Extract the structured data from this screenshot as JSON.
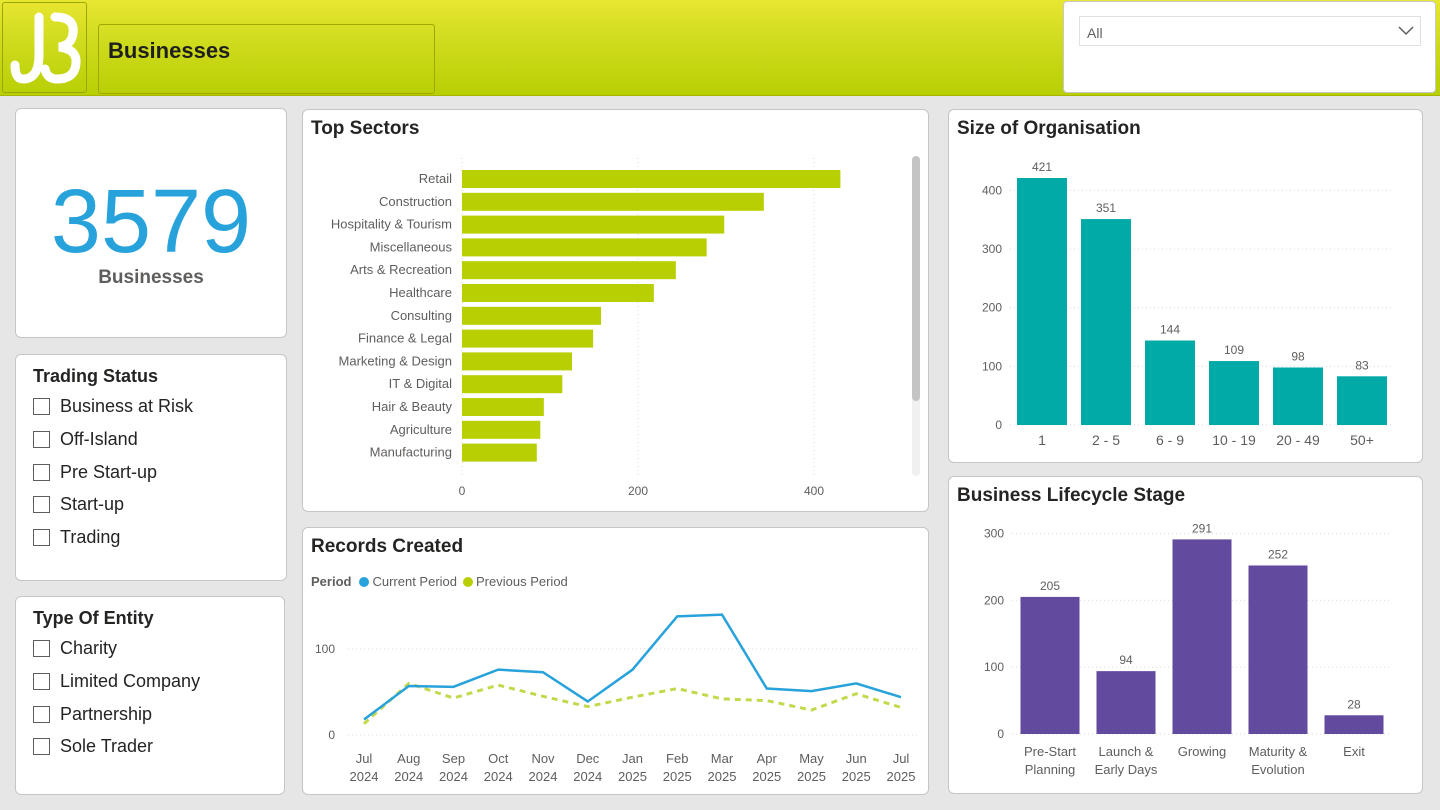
{
  "header": {
    "title": "Businesses",
    "logo_icon": "jb-logo-icon",
    "filter": {
      "selected": "All"
    }
  },
  "kpi": {
    "value": "3579",
    "label": "Businesses"
  },
  "trading_status": {
    "title": "Trading Status",
    "options": [
      "Business at Risk",
      "Off-Island",
      "Pre Start-up",
      "Start-up",
      "Trading"
    ]
  },
  "entity_type": {
    "title": "Type Of Entity",
    "options": [
      "Charity",
      "Limited Company",
      "Partnership",
      "Sole Trader"
    ]
  },
  "colors": {
    "lime": "#b8cf04",
    "teal": "#01a9a7",
    "purple": "#624a9e",
    "blue": "#27a2db",
    "dash": "#c3d84c"
  },
  "chart_data": [
    {
      "id": "top_sectors",
      "type": "bar",
      "orientation": "horizontal",
      "title": "Top Sectors",
      "categories": [
        "Retail",
        "Construction",
        "Hospitality & Tourism",
        "Miscellaneous",
        "Arts & Recreation",
        "Healthcare",
        "Consulting",
        "Finance & Legal",
        "Marketing & Design",
        "IT & Digital",
        "Hair & Beauty",
        "Agriculture",
        "Manufacturing"
      ],
      "values": [
        430,
        343,
        298,
        278,
        243,
        218,
        158,
        149,
        125,
        114,
        93,
        89,
        85
      ],
      "xlim": [
        0,
        500
      ],
      "xticks": [
        0,
        200,
        400
      ],
      "grid": true
    },
    {
      "id": "size_of_organisation",
      "type": "bar",
      "title": "Size of Organisation",
      "categories": [
        "1",
        "2 - 5",
        "6 - 9",
        "10 - 19",
        "20 - 49",
        "50+"
      ],
      "values": [
        421,
        351,
        144,
        109,
        98,
        83
      ],
      "ylim": [
        0,
        450
      ],
      "yticks": [
        0,
        100,
        200,
        300,
        400
      ],
      "grid": true
    },
    {
      "id": "records_created",
      "type": "line",
      "title": "Records Created",
      "legend_title": "Period",
      "categories": [
        [
          "Jul",
          "2024"
        ],
        [
          "Aug",
          "2024"
        ],
        [
          "Sep",
          "2024"
        ],
        [
          "Oct",
          "2024"
        ],
        [
          "Nov",
          "2024"
        ],
        [
          "Dec",
          "2024"
        ],
        [
          "Jan",
          "2025"
        ],
        [
          "Feb",
          "2025"
        ],
        [
          "Mar",
          "2025"
        ],
        [
          "Apr",
          "2025"
        ],
        [
          "May",
          "2025"
        ],
        [
          "Jun",
          "2025"
        ],
        [
          "Jul",
          "2025"
        ]
      ],
      "series": [
        {
          "name": "Current Period",
          "values": [
            18,
            57,
            56,
            76,
            73,
            39,
            76,
            138,
            140,
            54,
            51,
            60,
            44
          ]
        },
        {
          "name": "Previous Period",
          "values": [
            13,
            60,
            43,
            58,
            45,
            33,
            44,
            54,
            42,
            40,
            29,
            48,
            32
          ]
        }
      ],
      "ylim": [
        0,
        160
      ],
      "yticks": [
        0,
        100
      ],
      "grid": true
    },
    {
      "id": "lifecycle_stage",
      "type": "bar",
      "title": "Business Lifecycle Stage",
      "categories": [
        [
          "Pre-Start",
          "Planning"
        ],
        [
          "Launch &",
          "Early Days"
        ],
        [
          "Growing"
        ],
        [
          "Maturity &",
          "Evolution"
        ],
        [
          "Exit"
        ]
      ],
      "values": [
        205,
        94,
        291,
        252,
        28
      ],
      "ylim": [
        0,
        320
      ],
      "yticks": [
        0,
        100,
        200,
        300
      ],
      "grid": true
    }
  ]
}
